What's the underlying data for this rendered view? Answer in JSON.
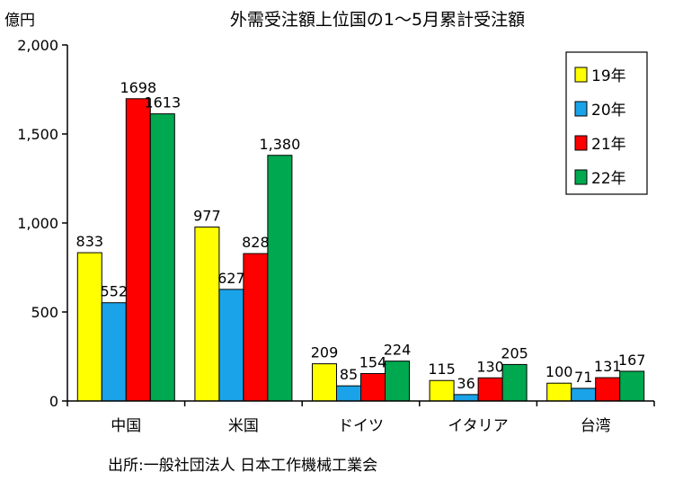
{
  "chart_data": {
    "type": "bar",
    "title": "外需受注額上位国の1～5月累計受注額",
    "ylabel": "億円",
    "source": "出所:一般社団法人 日本工作機械工業会",
    "categories": [
      "中国",
      "米国",
      "ドイツ",
      "イタリア",
      "台湾"
    ],
    "series": [
      {
        "name": "19年",
        "color": "#ffff00",
        "values": [
          833,
          977,
          209,
          115,
          100
        ],
        "labels": [
          "833",
          "977",
          "209",
          "115",
          "100"
        ]
      },
      {
        "name": "20年",
        "color": "#1aa3e8",
        "values": [
          552,
          627,
          85,
          36,
          71
        ],
        "labels": [
          "552",
          "627",
          "85",
          "36",
          "71"
        ]
      },
      {
        "name": "21年",
        "color": "#ff0000",
        "values": [
          1698,
          828,
          154,
          130,
          131
        ],
        "labels": [
          "1698",
          "828",
          "154",
          "130",
          "131"
        ]
      },
      {
        "name": "22年",
        "color": "#00a84f",
        "values": [
          1613,
          1380,
          224,
          205,
          167
        ],
        "labels": [
          "1613",
          "1,380",
          "224",
          "205",
          "167"
        ]
      }
    ],
    "yticks": [
      "0",
      "500",
      "1,000",
      "1,500",
      "2,000"
    ],
    "ylim": [
      0,
      2000
    ],
    "grid": false,
    "legend_position": "top-right"
  }
}
